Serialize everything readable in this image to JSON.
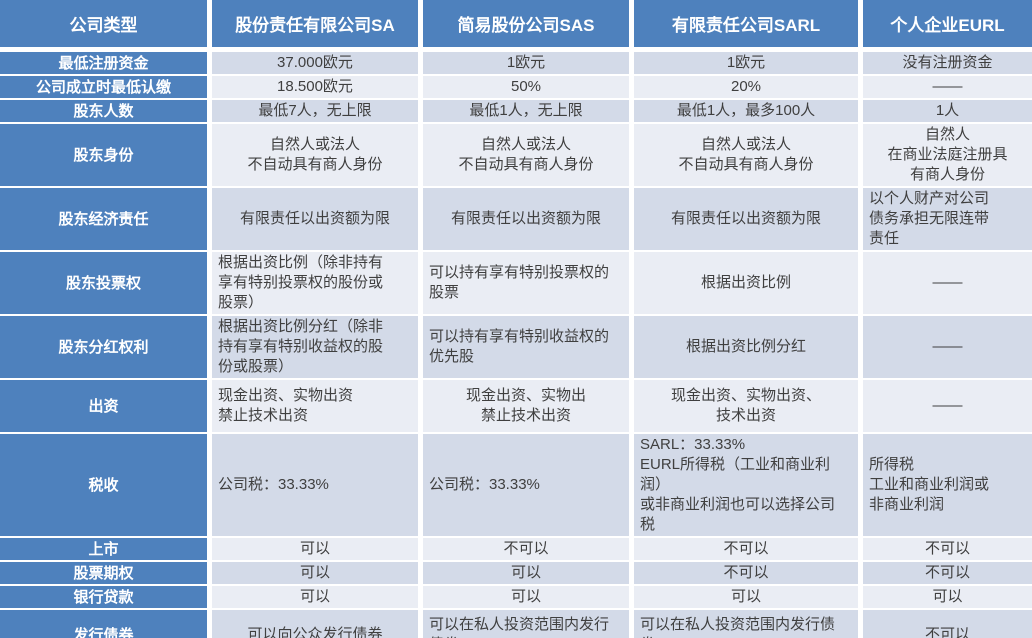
{
  "colors": {
    "header_blue": "#4e81bd",
    "band_dark": "#d3dae8",
    "band_light": "#eaedf4",
    "cell_text": "#3f3f3f",
    "separator": "#ffffff"
  },
  "table": {
    "columns": [
      "公司类型",
      "股份责任有限公司SA",
      "简易股份公司SAS",
      "有限责任公司SARL",
      "个人企业EURL"
    ],
    "rows": [
      {
        "label": "最低注册资金",
        "cells": [
          {
            "text": "37.000欧元",
            "align": "center"
          },
          {
            "text": "1欧元",
            "align": "center"
          },
          {
            "text": "1欧元",
            "align": "center"
          },
          {
            "text": "没有注册资金",
            "align": "center"
          }
        ]
      },
      {
        "label": "公司成立时最低认缴",
        "cells": [
          {
            "text": "18.500欧元",
            "align": "center"
          },
          {
            "text": "50%",
            "align": "center"
          },
          {
            "text": "20%",
            "align": "center"
          },
          {
            "text": "——",
            "align": "center"
          }
        ]
      },
      {
        "label": "股东人数",
        "cells": [
          {
            "text": "最低7人，无上限",
            "align": "center"
          },
          {
            "text": "最低1人，无上限",
            "align": "center"
          },
          {
            "text": "最低1人，最多100人",
            "align": "center"
          },
          {
            "text": "1人",
            "align": "center"
          }
        ]
      },
      {
        "label": "股东身份",
        "cells": [
          {
            "text": "自然人或法人\n不自动具有商人身份",
            "align": "center"
          },
          {
            "text": "自然人或法人\n不自动具有商人身份",
            "align": "center"
          },
          {
            "text": "自然人或法人\n不自动具有商人身份",
            "align": "center"
          },
          {
            "text": "自然人\n在商业法庭注册具\n有商人身份",
            "align": "center"
          }
        ]
      },
      {
        "label": "股东经济责任",
        "cells": [
          {
            "text": "有限责任以出资额为限",
            "align": "center"
          },
          {
            "text": "有限责任以出资额为限",
            "align": "center"
          },
          {
            "text": "有限责任以出资额为限",
            "align": "center"
          },
          {
            "text": "以个人财产对公司\n债务承担无限连带\n责任",
            "align": "left"
          }
        ]
      },
      {
        "label": "股东投票权",
        "cells": [
          {
            "text": "根据出资比例（除非持有\n享有特别投票权的股份或\n股票）",
            "align": "left"
          },
          {
            "text": "可以持有享有特别投票权的\n股票",
            "align": "left"
          },
          {
            "text": "根据出资比例",
            "align": "center"
          },
          {
            "text": "——",
            "align": "center"
          }
        ]
      },
      {
        "label": "股东分红权利",
        "cells": [
          {
            "text": "根据出资比例分红（除非\n持有享有特别收益权的股\n份或股票）",
            "align": "left"
          },
          {
            "text": "可以持有享有特别收益权的\n优先股",
            "align": "left"
          },
          {
            "text": "根据出资比例分红",
            "align": "center"
          },
          {
            "text": "——",
            "align": "center"
          }
        ]
      },
      {
        "label": "出资",
        "cells": [
          {
            "text": "现金出资、实物出资\n禁止技术出资",
            "align": "left"
          },
          {
            "text": "现金出资、实物出\n禁止技术出资",
            "align": "center"
          },
          {
            "text": "现金出资、实物出资、\n技术出资",
            "align": "center"
          },
          {
            "text": "——",
            "align": "center"
          }
        ]
      },
      {
        "label": "税收",
        "cells": [
          {
            "text": "公司税：33.33%",
            "align": "left"
          },
          {
            "text": "公司税：33.33%",
            "align": "left"
          },
          {
            "text": "SARL：33.33%\nEURL所得税（工业和商业利润）\n或非商业利润也可以选择公司\n税",
            "align": "left"
          },
          {
            "text": "所得税\n工业和商业利润或\n非商业利润",
            "align": "left"
          }
        ]
      },
      {
        "label": "上市",
        "cells": [
          {
            "text": "可以",
            "align": "center"
          },
          {
            "text": "不可以",
            "align": "center"
          },
          {
            "text": "不可以",
            "align": "center"
          },
          {
            "text": "不可以",
            "align": "center"
          }
        ]
      },
      {
        "label": "股票期权",
        "cells": [
          {
            "text": "可以",
            "align": "center"
          },
          {
            "text": "可以",
            "align": "center"
          },
          {
            "text": "不可以",
            "align": "center"
          },
          {
            "text": "不可以",
            "align": "center"
          }
        ]
      },
      {
        "label": "银行贷款",
        "cells": [
          {
            "text": "可以",
            "align": "center"
          },
          {
            "text": "可以",
            "align": "center"
          },
          {
            "text": "可以",
            "align": "center"
          },
          {
            "text": "可以",
            "align": "center"
          }
        ]
      },
      {
        "label": "发行债券",
        "cells": [
          {
            "text": "可以向公众发行债券",
            "align": "center"
          },
          {
            "text": "可以在私人投资范围内发行\n债券",
            "align": "left"
          },
          {
            "text": "可以在私人投资范围内发行债\n券",
            "align": "left"
          },
          {
            "text": "不可以",
            "align": "center"
          }
        ]
      }
    ]
  }
}
